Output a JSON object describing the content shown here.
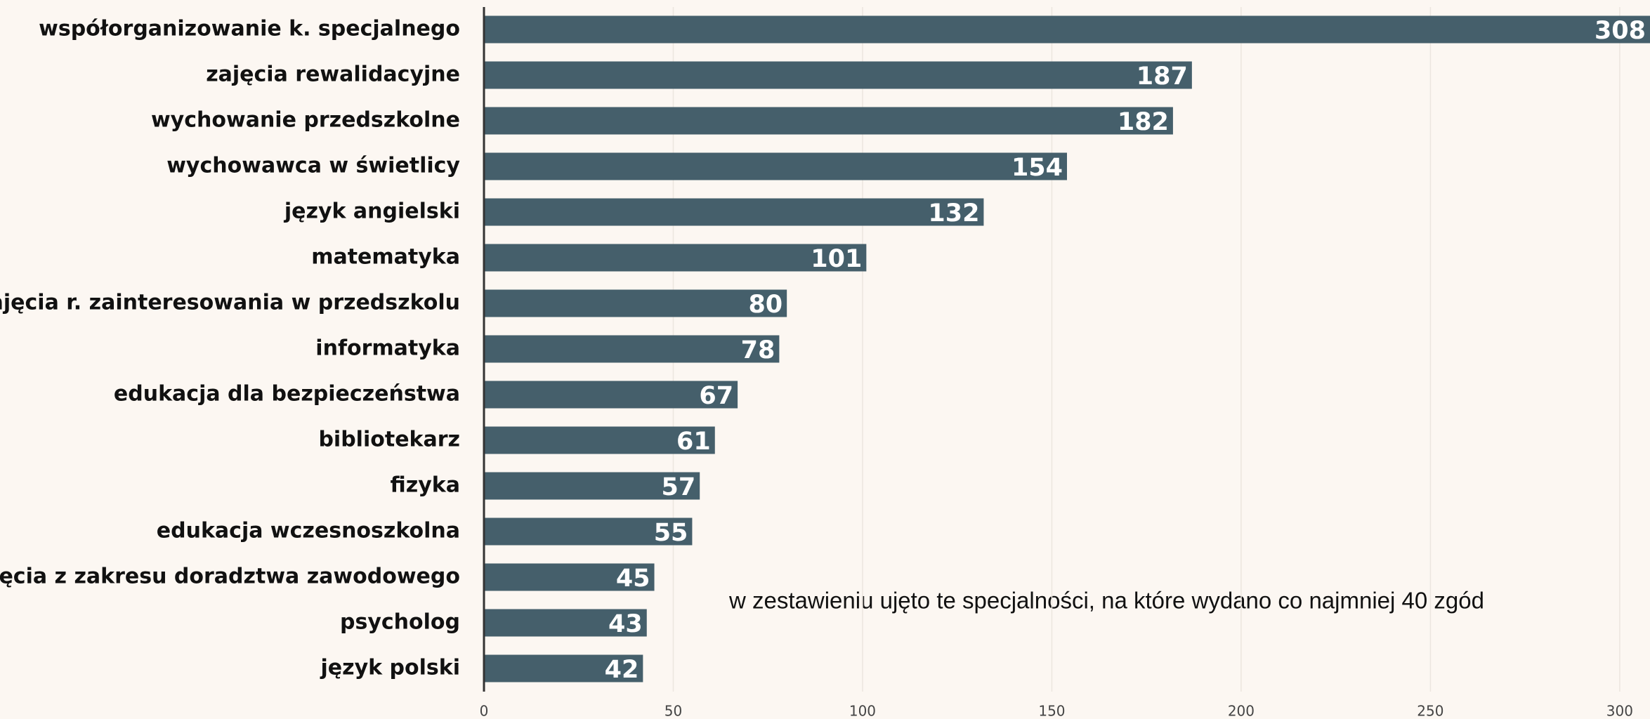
{
  "chart_data": {
    "type": "bar",
    "orientation": "horizontal",
    "categories": [
      "współorganizowanie k. specjalnego",
      "zajęcia rewalidacyjne",
      "wychowanie przedszkolne",
      "wychowawca w świetlicy",
      "język angielski",
      "matematyka",
      "zajęcia r. zainteresowania w przedszkolu",
      "informatyka",
      "edukacja dla bezpieczeństwa",
      "bibliotekarz",
      "fizyka",
      "edukacja wczesnoszkolna",
      "zajęcia z zakresu doradztwa zawodowego",
      "psycholog",
      "język polski"
    ],
    "values": [
      308,
      187,
      182,
      154,
      132,
      101,
      80,
      78,
      67,
      61,
      57,
      55,
      45,
      43,
      42
    ],
    "color": "#455f6b",
    "xlim": [
      0,
      308
    ],
    "xticks": [
      0,
      50,
      100,
      150,
      200,
      250,
      300
    ],
    "grid": true,
    "annotation": "w zestawieniu ujęto te specjalności, na które wydano co najmniej 40 zgód"
  }
}
